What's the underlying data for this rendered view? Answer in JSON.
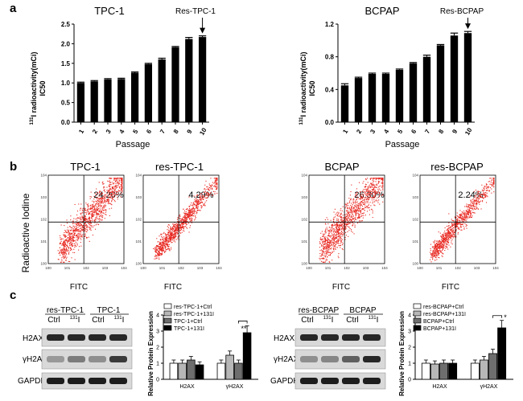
{
  "panels": {
    "a": "a",
    "b": "b",
    "c": "c"
  },
  "chart_data": [
    {
      "type": "bar",
      "id": "a-left",
      "title": "TPC-1",
      "xlabel": "Passage",
      "ylabel_sup": "131",
      "ylabel_main": "I radioactivity(mCi)",
      "ylabel_line2": "IC50",
      "categories": [
        "1",
        "2",
        "3",
        "4",
        "5",
        "6",
        "7",
        "8",
        "9",
        "10"
      ],
      "values": [
        1.0,
        1.04,
        1.09,
        1.1,
        1.26,
        1.48,
        1.6,
        1.91,
        2.12,
        2.17
      ],
      "errors": [
        0.02,
        0.02,
        0.02,
        0.02,
        0.02,
        0.02,
        0.03,
        0.02,
        0.04,
        0.03
      ],
      "ylim": [
        0,
        2.5
      ],
      "yticks": [
        "0.0",
        "0.5",
        "1.0",
        "1.5",
        "2.0",
        "2.5"
      ],
      "annotation": "Res-TPC-1"
    },
    {
      "type": "bar",
      "id": "a-right",
      "title": "BCPAP",
      "xlabel": "Passage",
      "ylabel_sup": "131",
      "ylabel_main": "I radioactivity(mCi)",
      "ylabel_line2": "IC50",
      "categories": [
        "1",
        "2",
        "3",
        "4",
        "5",
        "6",
        "7",
        "8",
        "9",
        "10"
      ],
      "values": [
        0.45,
        0.54,
        0.59,
        0.59,
        0.64,
        0.72,
        0.8,
        0.94,
        1.06,
        1.09
      ],
      "errors": [
        0.02,
        0.01,
        0.01,
        0.01,
        0.01,
        0.01,
        0.02,
        0.01,
        0.03,
        0.02
      ],
      "ylim": [
        0,
        1.2
      ],
      "yticks": [
        "0.0",
        "0.4",
        "0.8",
        "1.2"
      ],
      "annotation": "Res-BCPAP"
    },
    {
      "type": "scatter",
      "id": "b-1",
      "title": "TPC-1",
      "percent": "24.20%",
      "ylabel": "Radioactive Iodine",
      "xlabel": "FITC"
    },
    {
      "type": "scatter",
      "id": "b-2",
      "title": "res-TPC-1",
      "percent": "4.29%",
      "xlabel": "FITC"
    },
    {
      "type": "scatter",
      "id": "b-3",
      "title": "BCPAP",
      "percent": "26.30%",
      "xlabel": "FITC"
    },
    {
      "type": "scatter",
      "id": "b-4",
      "title": "res-BCPAP",
      "percent": "2.24%",
      "xlabel": "FITC"
    },
    {
      "type": "bar",
      "id": "c-left",
      "ylabel": "Relative Protein Expression",
      "categories": [
        "H2AX",
        "γH2AX"
      ],
      "series": [
        {
          "name": "res-TPC-1+Ctrl",
          "values": [
            1.0,
            1.0
          ]
        },
        {
          "name": "res-TPC-1+131I",
          "values": [
            1.0,
            1.5
          ]
        },
        {
          "name": "TPC-1+Ctrl",
          "values": [
            1.2,
            1.0
          ]
        },
        {
          "name": "TPC-1+131I",
          "values": [
            0.9,
            2.9
          ]
        }
      ],
      "ylim": [
        0,
        4
      ],
      "yticks": [
        "0",
        "1",
        "2",
        "3",
        "4"
      ],
      "significance": "**"
    },
    {
      "type": "bar",
      "id": "c-right",
      "ylabel": "Relative Protein Expression",
      "categories": [
        "H2AX",
        "γH2AX"
      ],
      "series": [
        {
          "name": "res-BCPAP+Ctrl",
          "values": [
            1.0,
            1.0
          ]
        },
        {
          "name": "res-BCPAP+131I",
          "values": [
            0.95,
            1.2
          ]
        },
        {
          "name": "BCPAP+Ctrl",
          "values": [
            1.0,
            1.6
          ]
        },
        {
          "name": "BCPAP+131I",
          "values": [
            1.0,
            3.2
          ]
        }
      ],
      "ylim": [
        0,
        4
      ],
      "yticks": [
        "0",
        "1",
        "2",
        "3",
        "4"
      ],
      "significance": "*"
    }
  ],
  "blots": {
    "left": {
      "group1": "res-TPC-1",
      "group2": "TPC-1",
      "lane_ctrl": "Ctrl",
      "lane_treat_sup": "131",
      "lane_treat": "I",
      "rows": [
        "H2AX",
        "γH2AX",
        "GAPDH"
      ]
    },
    "right": {
      "group1": "res-BCPAP",
      "group2": "BCPAP",
      "lane_ctrl": "Ctrl",
      "lane_treat_sup": "131",
      "lane_treat": "I",
      "rows": [
        "H2AX",
        "γH2AX",
        "GAPDH"
      ]
    }
  },
  "legend_labels": {
    "left": [
      "res-TPC-1+Ctrl",
      "res-TPC-1+131I",
      "TPC-1+Ctrl",
      "TPC-1+131I"
    ],
    "right": [
      "res-BCPAP+Ctrl",
      "res-BCPAP+131I",
      "BCPAP+Ctrl",
      "BCPAP+131I"
    ]
  },
  "colors": {
    "bar": "#000000",
    "scatter": "#e8261f",
    "legend_fills": [
      "#ffffff",
      "#b7b7b7",
      "#6e6e6e",
      "#000000"
    ]
  }
}
